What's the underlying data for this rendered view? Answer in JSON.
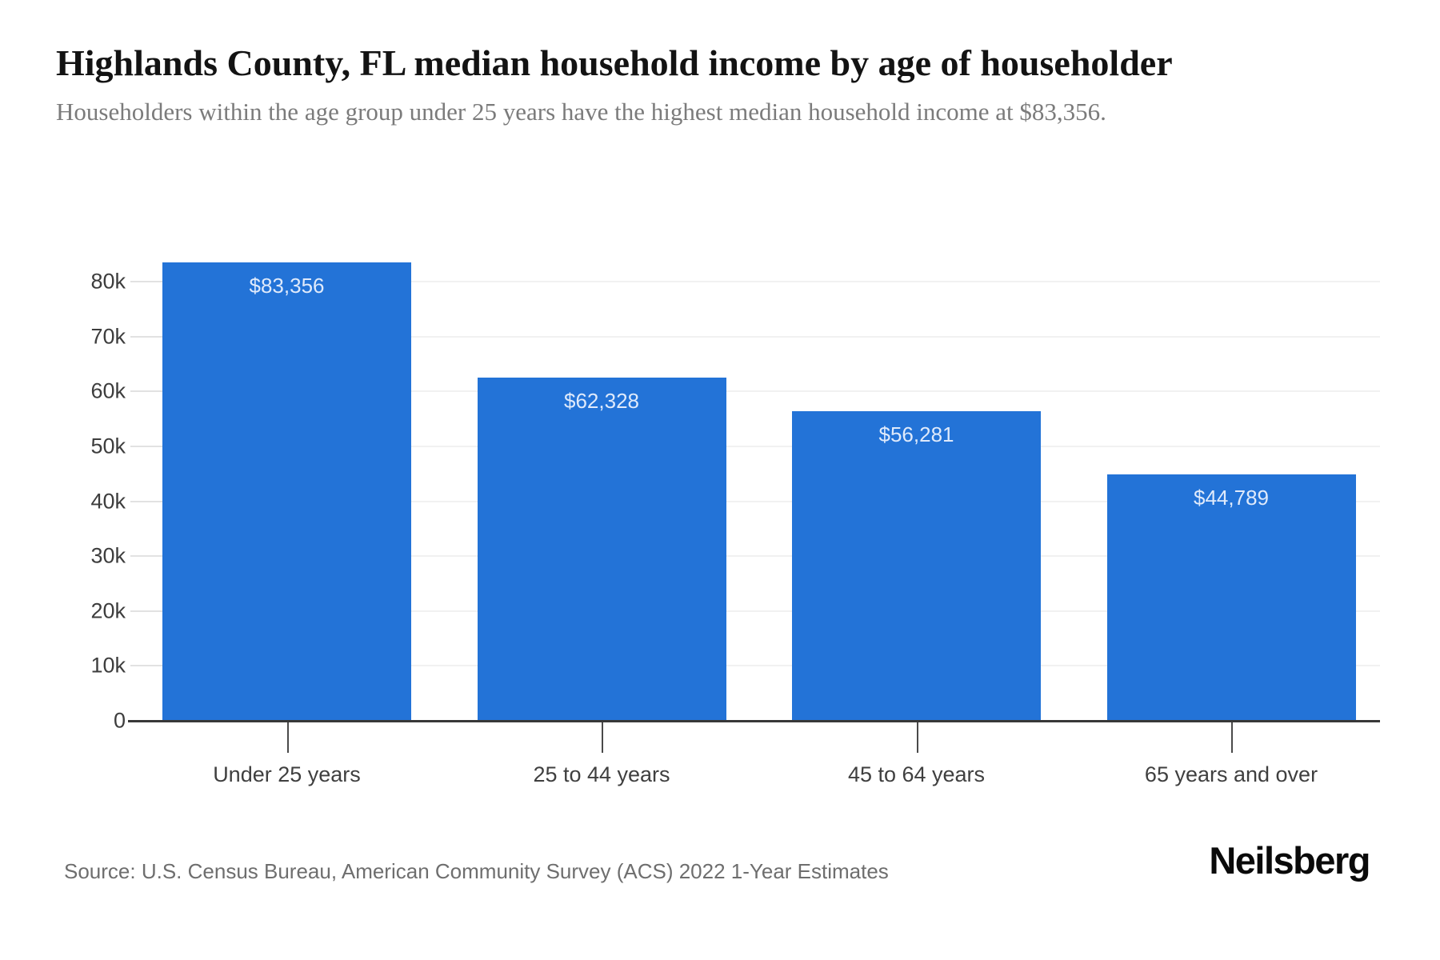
{
  "header": {
    "title": "Highlands County, FL median household income by age of householder",
    "subtitle": "Householders within the age group under 25 years have the highest median household income at $83,356."
  },
  "chart_data": {
    "type": "bar",
    "title": "Highlands County, FL median household income by age of householder",
    "categories": [
      "Under 25 years",
      "25 to 44 years",
      "45 to 64 years",
      "65 years and over"
    ],
    "values": [
      83356,
      62328,
      56281,
      44789
    ],
    "value_labels": [
      "$83,356",
      "$62,328",
      "$56,281",
      "$44,789"
    ],
    "xlabel": "",
    "ylabel": "",
    "y_tick_labels": [
      "0",
      "10k",
      "20k",
      "30k",
      "40k",
      "50k",
      "60k",
      "70k",
      "80k"
    ],
    "y_tick_step": 10000,
    "ylim": [
      0,
      87000
    ],
    "grid": true,
    "legend": false,
    "colors": {
      "bar": "#2373d7",
      "bar_value_text": "#dfeafb",
      "gridline": "#f1f1f1",
      "axis": "#383838",
      "tick_text": "#3d3d3d"
    }
  },
  "footer": {
    "source": "Source: U.S. Census Bureau, American Community Survey (ACS) 2022 1-Year Estimates",
    "brand": "Neilsberg"
  }
}
